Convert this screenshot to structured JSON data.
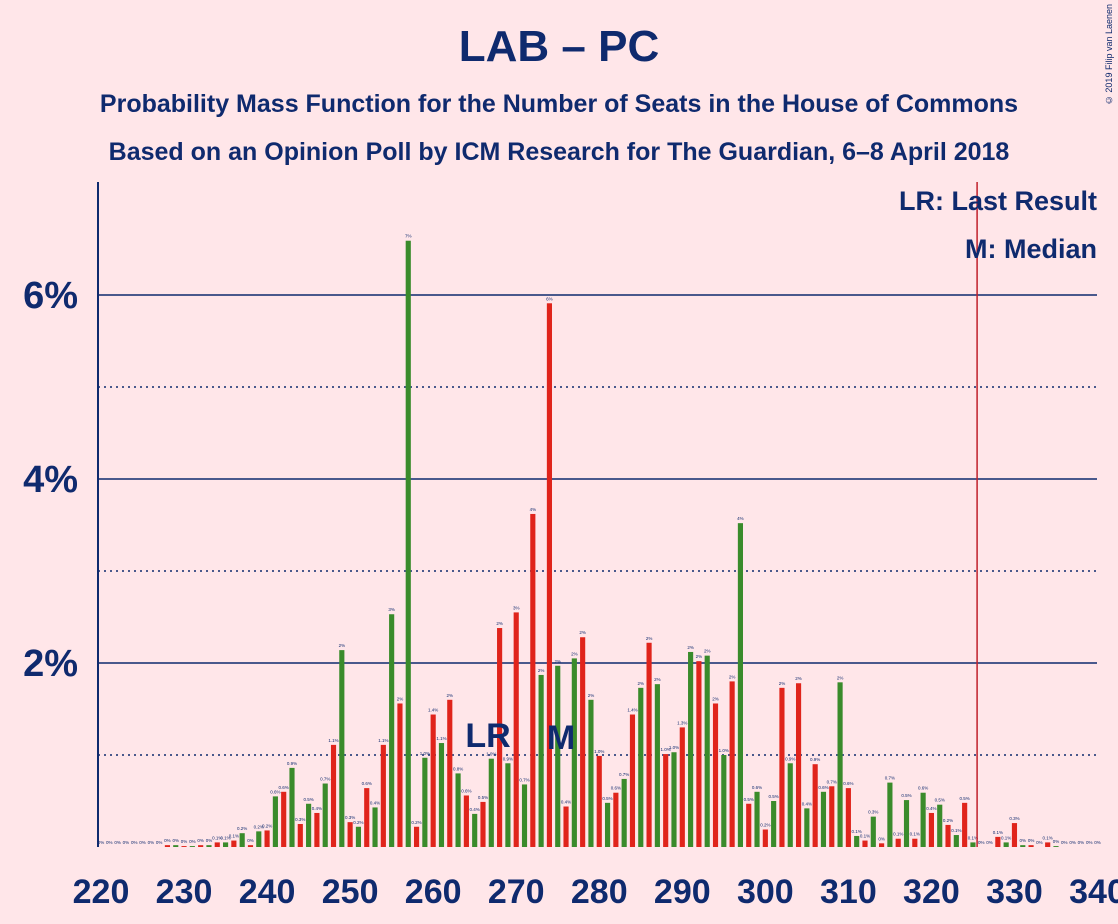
{
  "header": {
    "title": "LAB – PC",
    "subtitle1": "Probability Mass Function for the Number of Seats in the House of Commons",
    "subtitle2": "Based on an Opinion Poll by ICM Research for The Guardian, 6–8 April 2018",
    "copyright": "© 2019 Filip van Laenen"
  },
  "legend": {
    "lr": "LR: Last Result",
    "m": "M: Median",
    "lr_marker": "LR",
    "m_marker": "M"
  },
  "chart_data": {
    "type": "bar",
    "title": "LAB – PC",
    "xlabel": "",
    "ylabel": "",
    "xlim": [
      220,
      340
    ],
    "ylim": [
      0,
      7
    ],
    "x_ticks": [
      "220",
      "230",
      "240",
      "250",
      "260",
      "270",
      "280",
      "290",
      "300",
      "310",
      "320",
      "330",
      "340"
    ],
    "y_ticks": [
      {
        "value": 2,
        "label": "2%"
      },
      {
        "value": 4,
        "label": "4%"
      },
      {
        "value": 6,
        "label": "6%"
      }
    ],
    "minor_gridlines": [
      1,
      3,
      5
    ],
    "last_result_seat": 267,
    "median_seat": 276,
    "majority_line_seat": 326,
    "colors": {
      "red": "#e0241b",
      "green": "#3a8b2b",
      "navy": "#0f2a6e",
      "majority": "#c0202a"
    },
    "x": [
      220,
      221,
      222,
      223,
      224,
      225,
      226,
      227,
      228,
      229,
      230,
      231,
      232,
      233,
      234,
      235,
      236,
      237,
      238,
      239,
      240,
      241,
      242,
      243,
      244,
      245,
      246,
      247,
      248,
      249,
      250,
      251,
      252,
      253,
      254,
      255,
      256,
      257,
      258,
      259,
      260,
      261,
      262,
      263,
      264,
      265,
      266,
      267,
      268,
      269,
      270,
      271,
      272,
      273,
      274,
      275,
      276,
      277,
      278,
      279,
      280,
      281,
      282,
      283,
      284,
      285,
      286,
      287,
      288,
      289,
      290,
      291,
      292,
      293,
      294,
      295,
      296,
      297,
      298,
      299,
      300,
      301,
      302,
      303,
      304,
      305,
      306,
      307,
      308,
      309,
      310,
      311,
      312,
      313,
      314,
      315,
      316,
      317,
      318,
      319,
      320,
      321,
      322,
      323,
      324,
      325,
      326,
      327,
      328,
      329,
      330,
      331,
      332,
      333,
      334,
      335,
      336,
      337,
      338,
      339,
      340
    ],
    "values": [
      0,
      0,
      0,
      0,
      0,
      0,
      0,
      0,
      0.02,
      0.02,
      0.01,
      0.01,
      0.02,
      0.02,
      0.05,
      0.05,
      0.07,
      0.15,
      0.02,
      0.17,
      0.18,
      0.55,
      0.6,
      0.86,
      0.25,
      0.47,
      0.37,
      0.69,
      1.11,
      2.14,
      0.27,
      0.22,
      0.64,
      0.43,
      1.11,
      2.53,
      1.56,
      6.59,
      0.22,
      0.97,
      1.44,
      1.13,
      1.6,
      0.8,
      0.56,
      0.36,
      0.49,
      0.96,
      2.38,
      0.91,
      2.55,
      0.68,
      3.62,
      1.87,
      5.91,
      1.97,
      0.44,
      2.05,
      2.28,
      1.6,
      0.99,
      0.48,
      0.59,
      0.74,
      1.44,
      1.73,
      2.22,
      1.77,
      1.01,
      1.03,
      1.3,
      2.12,
      2.02,
      2.08,
      1.56,
      1.0,
      1.8,
      3.52,
      0.47,
      0.6,
      0.19,
      0.5,
      1.73,
      0.91,
      1.78,
      0.42,
      0.9,
      0.6,
      0.66,
      1.79,
      0.64,
      0.12,
      0.07,
      0.33,
      0.04,
      0.7,
      0.09,
      0.51,
      0.09,
      0.59,
      0.37,
      0.46,
      0.24,
      0.13,
      0.48,
      0.05,
      0,
      0,
      0.11,
      0.05,
      0.26,
      0.02,
      0.02,
      0,
      0.05,
      0.01,
      0,
      0,
      0,
      0,
      0
    ],
    "data_labels": [
      "0%",
      "0%",
      "0%",
      "0%",
      "0%",
      "0%",
      "0%",
      "0%",
      "0%",
      "0%",
      "0%",
      "0%",
      "0%",
      "0%",
      "0.1%",
      "0.1%",
      "0.1%",
      "0.2%",
      "0%",
      "0.2%",
      "0.2%",
      "0.6%",
      "0.6%",
      "0.9%",
      "0.3%",
      "0.5%",
      "0.4%",
      "0.7%",
      "1.1%",
      "2%",
      "0.3%",
      "0.2%",
      "0.6%",
      "0.4%",
      "1.1%",
      "3%",
      "2%",
      "7%",
      "0.2%",
      "1.0%",
      "1.4%",
      "1.1%",
      "2%",
      "0.8%",
      "0.6%",
      "0.4%",
      "0.5%",
      "1.0%",
      "2%",
      "0.9%",
      "3%",
      "0.7%",
      "4%",
      "2%",
      "6%",
      "2%",
      "0.4%",
      "2%",
      "2%",
      "2%",
      "1.0%",
      "0.5%",
      "0.6%",
      "0.7%",
      "1.4%",
      "2%",
      "2%",
      "2%",
      "1.0%",
      "1.0%",
      "1.3%",
      "2%",
      "2%",
      "2%",
      "2%",
      "1.0%",
      "2%",
      "4%",
      "0.5%",
      "0.6%",
      "0.2%",
      "0.5%",
      "2%",
      "0.9%",
      "2%",
      "0.4%",
      "0.9%",
      "0.6%",
      "0.7%",
      "2%",
      "0.6%",
      "0.1%",
      "0.1%",
      "0.3%",
      "0%",
      "0.7%",
      "0.1%",
      "0.5%",
      "0.1%",
      "0.6%",
      "0.4%",
      "0.5%",
      "0.2%",
      "0.1%",
      "0.5%",
      "0.1%",
      "0%",
      "0%",
      "0.1%",
      "0.1%",
      "0.3%",
      "0%",
      "0%",
      "0%",
      "0.1%",
      "0%",
      "0%",
      "0%",
      "0%",
      "0%",
      "0%"
    ]
  }
}
